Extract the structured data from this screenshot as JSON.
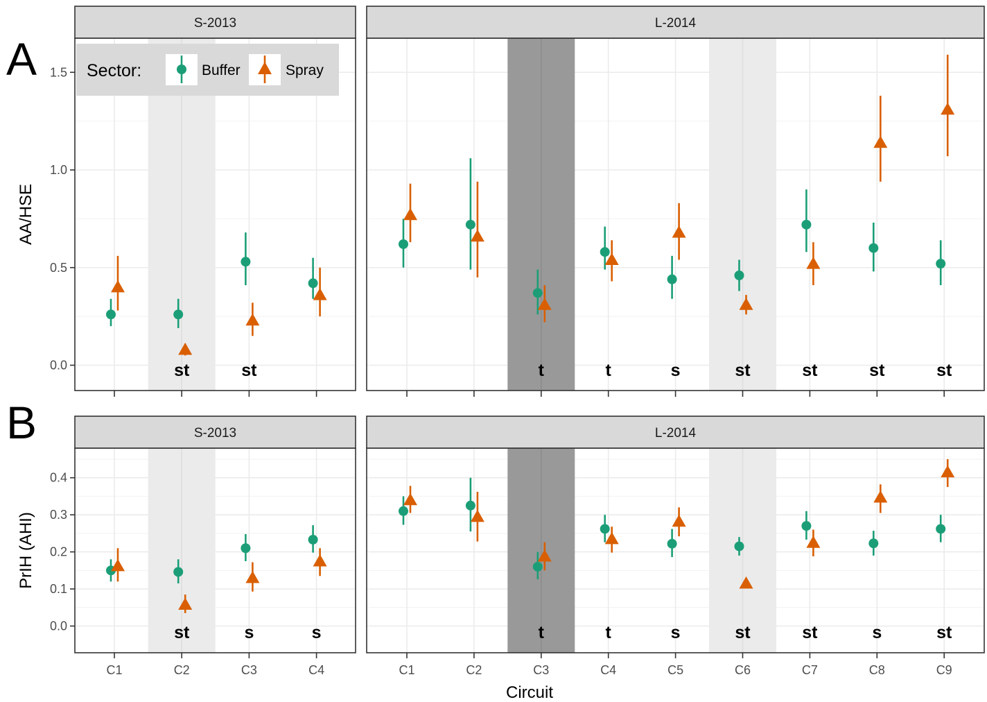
{
  "chart_data": {
    "type": "scatter",
    "x_title": "Circuit",
    "legend": {
      "title": "Sector:",
      "placement": "top-left",
      "entries": [
        {
          "name": "Buffer",
          "color": "#1b9e77",
          "shape": "circle"
        },
        {
          "name": "Spray",
          "color": "#d95f02",
          "shape": "triangle"
        }
      ]
    },
    "facets": [
      "S-2013",
      "L-2014"
    ],
    "facet_circuits": {
      "S-2013": [
        "C1",
        "C2",
        "C3",
        "C4"
      ],
      "L-2014": [
        "C1",
        "C2",
        "C3",
        "C4",
        "C5",
        "C6",
        "C7",
        "C8",
        "C9"
      ]
    },
    "shading": {
      "S-2013": [
        {
          "circuit": "C2",
          "tone": "light"
        }
      ],
      "L-2014": [
        {
          "circuit": "C3",
          "tone": "dark"
        },
        {
          "circuit": "C6",
          "tone": "light"
        }
      ]
    },
    "rows": [
      {
        "letter": "A",
        "ylabel": "AA/HSE",
        "ylim": [
          -0.13,
          1.68
        ],
        "yticks": [
          0.0,
          0.5,
          1.0,
          1.5
        ],
        "ytick_labels": [
          "0.0",
          "0.5",
          "1.0",
          "1.5"
        ],
        "data": {
          "S-2013": {
            "Buffer": {
              "mean": [
                0.26,
                0.26,
                0.53,
                0.42
              ],
              "low": [
                0.2,
                0.19,
                0.41,
                0.34
              ],
              "high": [
                0.34,
                0.34,
                0.68,
                0.55
              ]
            },
            "Spray": {
              "mean": [
                0.4,
                0.08,
                0.23,
                0.36
              ],
              "low": [
                0.28,
                0.05,
                0.15,
                0.25
              ],
              "high": [
                0.56,
                0.11,
                0.32,
                0.5
              ]
            },
            "labels": [
              "",
              "st",
              "st",
              ""
            ]
          },
          "L-2014": {
            "Buffer": {
              "mean": [
                0.62,
                0.72,
                0.37,
                0.58,
                0.44,
                0.46,
                0.72,
                0.6,
                0.52
              ],
              "low": [
                0.5,
                0.49,
                0.26,
                0.49,
                0.34,
                0.38,
                0.58,
                0.48,
                0.41
              ],
              "high": [
                0.75,
                1.06,
                0.49,
                0.71,
                0.56,
                0.54,
                0.9,
                0.73,
                0.64
              ]
            },
            "Spray": {
              "mean": [
                0.77,
                0.66,
                0.31,
                0.54,
                0.68,
                0.31,
                0.52,
                1.14,
                1.31
              ],
              "low": [
                0.63,
                0.45,
                0.22,
                0.43,
                0.54,
                0.26,
                0.41,
                0.94,
                1.07
              ],
              "high": [
                0.93,
                0.94,
                0.41,
                0.64,
                0.83,
                0.36,
                0.63,
                1.38,
                1.59
              ]
            },
            "labels": [
              "",
              "",
              "t",
              "t",
              "s",
              "st",
              "st",
              "st",
              "st"
            ]
          }
        }
      },
      {
        "letter": "B",
        "ylabel": "PrIH (AHI)",
        "ylim": [
          -0.03,
          0.47
        ],
        "yticks": [
          0.0,
          0.1,
          0.2,
          0.3,
          0.4
        ],
        "ytick_labels": [
          "0.0",
          "0.1",
          "0.2",
          "0.3",
          "0.4"
        ],
        "data": {
          "S-2013": {
            "Buffer": {
              "mean": [
                0.15,
                0.146,
                0.21,
                0.233
              ],
              "low": [
                0.12,
                0.115,
                0.175,
                0.198
              ],
              "high": [
                0.18,
                0.18,
                0.248,
                0.272
              ]
            },
            "Spray": {
              "mean": [
                0.162,
                0.058,
                0.13,
                0.175
              ],
              "low": [
                0.12,
                0.035,
                0.093,
                0.135
              ],
              "high": [
                0.21,
                0.085,
                0.172,
                0.21
              ]
            },
            "labels": [
              "",
              "st",
              "s",
              "s"
            ]
          },
          "L-2014": {
            "Buffer": {
              "mean": [
                0.31,
                0.325,
                0.16,
                0.262,
                0.222,
                0.215,
                0.27,
                0.223,
                0.262
              ],
              "low": [
                0.273,
                0.255,
                0.126,
                0.226,
                0.186,
                0.19,
                0.233,
                0.19,
                0.226
              ],
              "high": [
                0.35,
                0.4,
                0.2,
                0.3,
                0.262,
                0.24,
                0.31,
                0.257,
                0.3
              ]
            },
            "Spray": {
              "mean": [
                0.34,
                0.295,
                0.188,
                0.235,
                0.282,
                0.115,
                0.225,
                0.347,
                0.415
              ],
              "low": [
                0.305,
                0.228,
                0.15,
                0.198,
                0.242,
                0.105,
                0.188,
                0.305,
                0.375
              ],
              "high": [
                0.378,
                0.362,
                0.226,
                0.268,
                0.32,
                0.125,
                0.26,
                0.382,
                0.45
              ]
            },
            "labels": [
              "",
              "",
              "t",
              "t",
              "s",
              "st",
              "st",
              "s",
              "st"
            ]
          }
        }
      }
    ],
    "grid": true
  }
}
